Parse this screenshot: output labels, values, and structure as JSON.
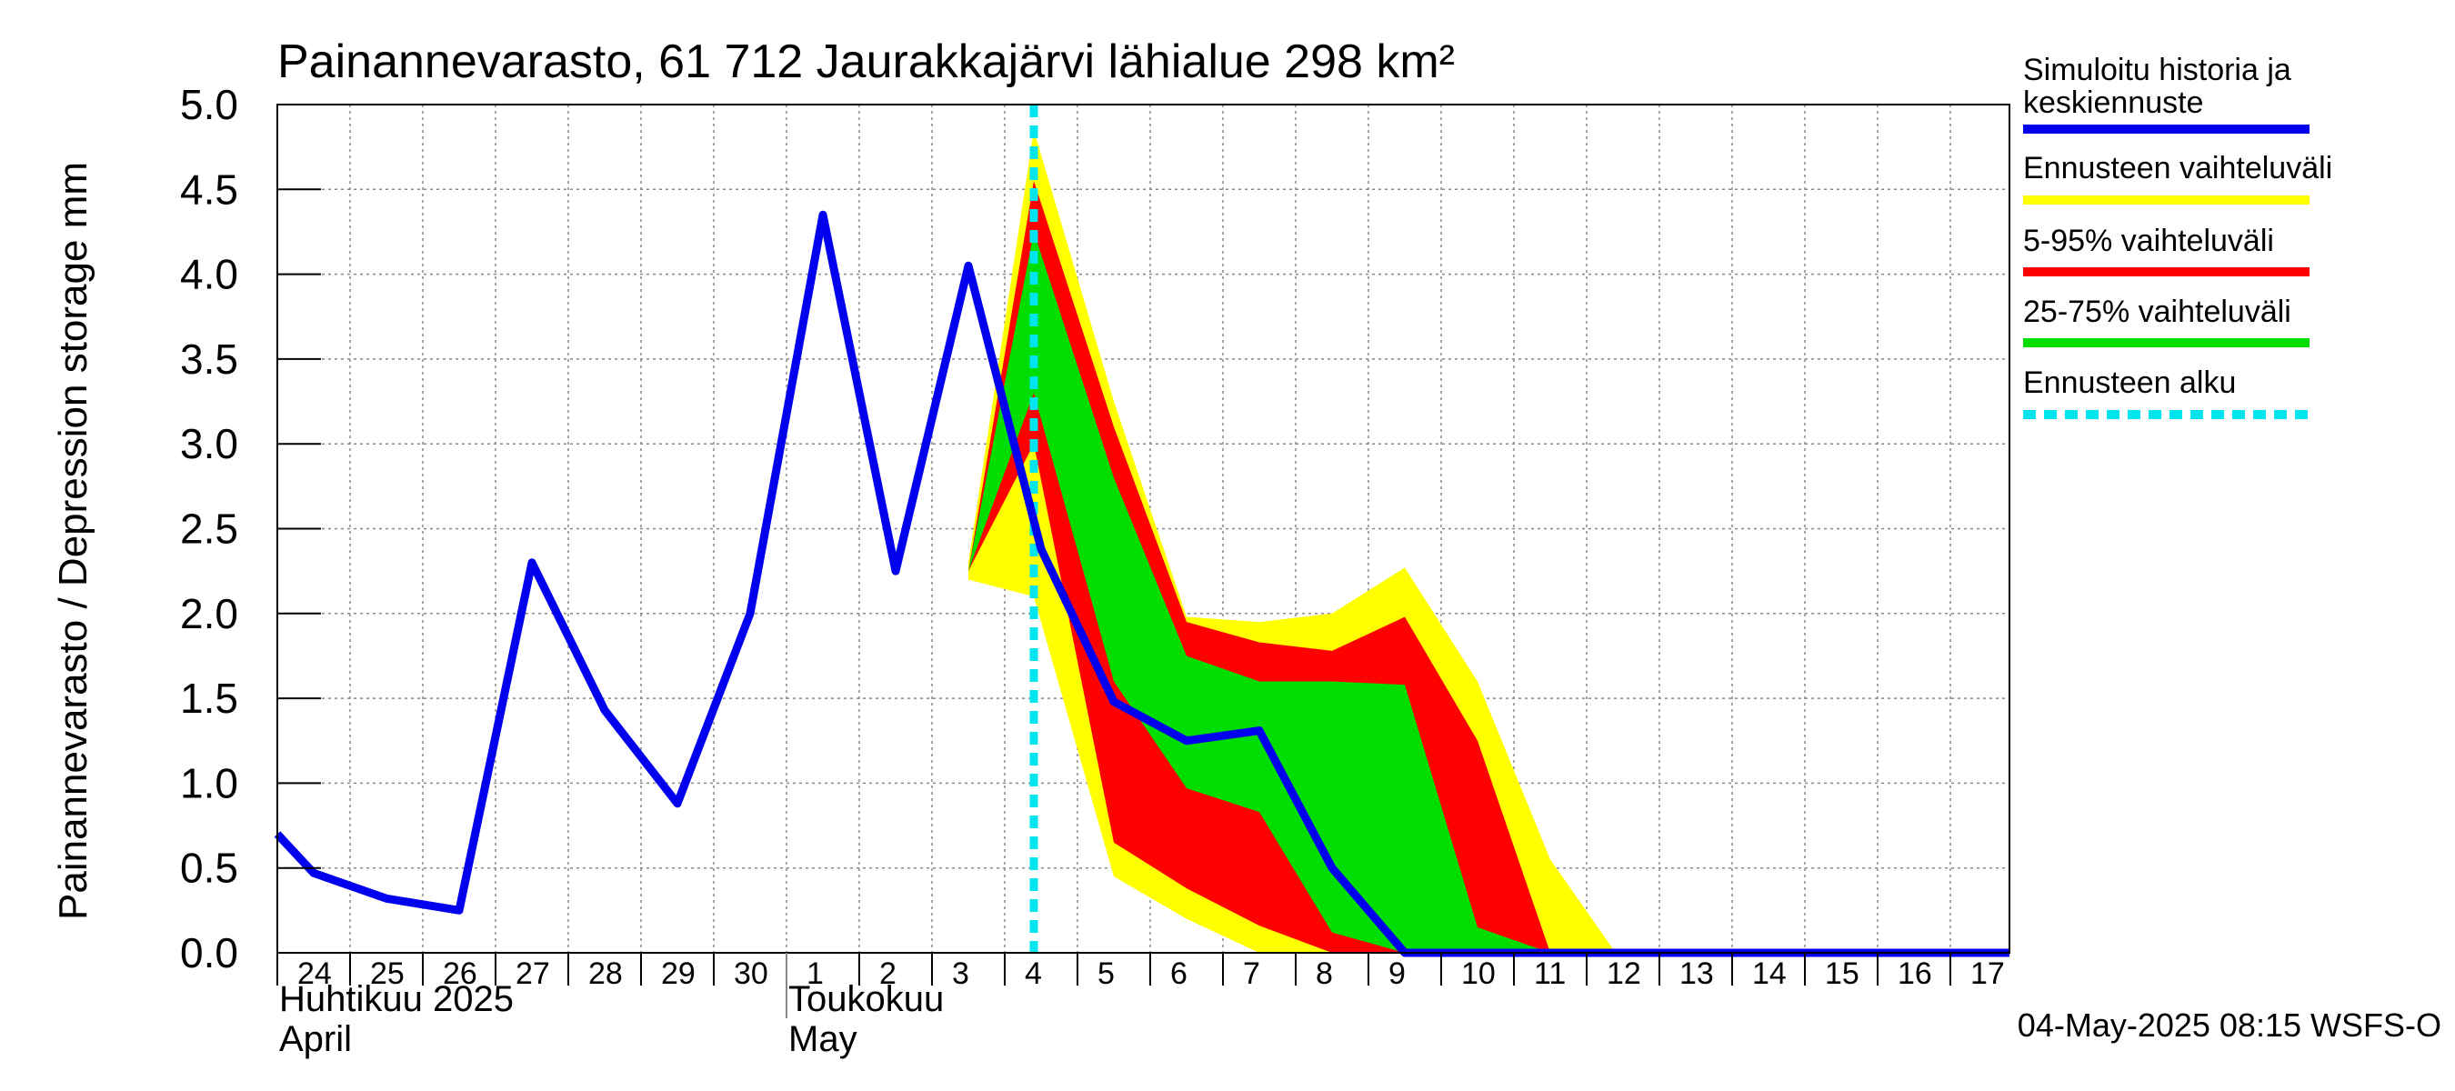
{
  "chart_data": {
    "type": "area",
    "title": "Painannevarasto, 61 712 Jaurakkajärvi lähialue 298 km²",
    "ylabel": "Painannevarasto / Depression storage    mm",
    "ylim": [
      0,
      5
    ],
    "yticks": [
      "0.0",
      "0.5",
      "1.0",
      "1.5",
      "2.0",
      "2.5",
      "3.0",
      "3.5",
      "4.0",
      "4.5",
      "5.0"
    ],
    "grid": true,
    "legend_position": "right",
    "x_ticks": [
      "24",
      "25",
      "26",
      "27",
      "28",
      "29",
      "30",
      "1",
      "2",
      "3",
      "4",
      "5",
      "6",
      "7",
      "8",
      "9",
      "10",
      "11",
      "12",
      "13",
      "14",
      "15",
      "16",
      "17"
    ],
    "month_labels": [
      {
        "fi": "Huhtikuu  2025",
        "en": "April",
        "at_day": 0
      },
      {
        "fi": "Toukokuu",
        "en": "May",
        "at_day": 7
      }
    ],
    "forecast_start_day": 9.9,
    "series": [
      {
        "name": "Simuloitu historia ja keskiennuste",
        "color": "#0000ee",
        "x": [
          -0.5,
          0,
          1,
          2,
          3,
          4,
          5,
          6,
          7,
          8,
          9,
          10,
          11,
          12,
          13,
          14,
          15,
          16,
          17.3,
          24.5
        ],
        "y": [
          0.7,
          0.47,
          0.32,
          0.25,
          2.3,
          1.43,
          0.88,
          2.0,
          4.35,
          2.25,
          4.05,
          2.38,
          1.48,
          1.25,
          1.31,
          0.5,
          0.0,
          0.0,
          0.0,
          0.0
        ]
      },
      {
        "name": "Ennusteen vaihteluväli",
        "color": "#ffff00",
        "x": [
          9,
          9.9,
          11,
          12,
          13,
          14,
          15,
          16,
          17,
          17.9
        ],
        "upper": [
          2.3,
          4.85,
          3.25,
          1.98,
          1.95,
          2.0,
          2.27,
          1.6,
          0.55,
          0.0
        ],
        "lower": [
          2.2,
          2.1,
          0.45,
          0.2,
          0.0,
          0.0,
          0.0,
          0.0,
          0.0,
          0.0
        ]
      },
      {
        "name": "5-95% vaihteluväli",
        "color": "#ff0000",
        "x": [
          9,
          9.9,
          11,
          12,
          13,
          14,
          15,
          16,
          17
        ],
        "upper": [
          2.25,
          4.55,
          3.1,
          1.95,
          1.83,
          1.78,
          1.98,
          1.25,
          0.0
        ],
        "lower": [
          2.25,
          3.0,
          0.65,
          0.38,
          0.16,
          0.0,
          0.0,
          0.0,
          0.0
        ]
      },
      {
        "name": "25-75% vaihteluväli",
        "color": "#00dd00",
        "x": [
          9,
          9.9,
          11,
          12,
          13,
          14,
          15,
          16,
          17
        ],
        "upper": [
          2.25,
          4.25,
          2.8,
          1.75,
          1.6,
          1.6,
          1.58,
          0.15,
          0.0
        ],
        "lower": [
          2.25,
          3.3,
          1.6,
          0.97,
          0.83,
          0.12,
          0.0,
          0.0,
          0.0
        ]
      },
      {
        "name": "Ennusteen alku",
        "color": "#00e5ee",
        "style": "dashed"
      }
    ],
    "footer": "04-May-2025 08:15 WSFS-O"
  }
}
